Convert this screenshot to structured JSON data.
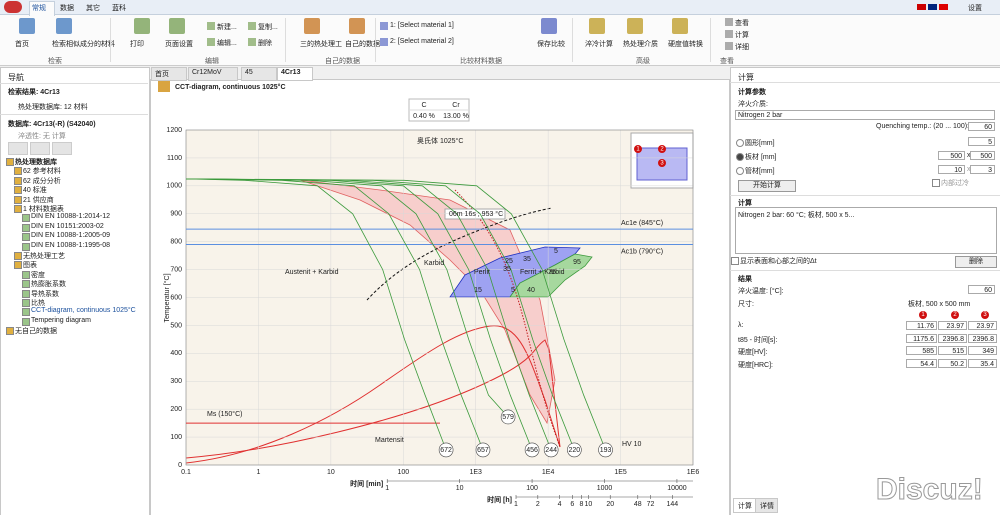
{
  "tabs": [
    "常规",
    "数据",
    "其它",
    "蓝科"
  ],
  "top_right": "设置",
  "ribbon": {
    "groups": [
      {
        "label": "检索",
        "items": [
          "首页",
          "检索相似成分的材料"
        ]
      },
      {
        "label": "编辑",
        "items": [
          "打印",
          "页面设置",
          "新建...",
          "编辑...",
          "复制...",
          "删除"
        ]
      },
      {
        "label": "自己的数据",
        "items": [
          "三的热处理工",
          "自己的数据"
        ]
      },
      {
        "label": "比较材料数据",
        "items": [
          "1: [Select material 1]",
          "2: [Select material 2]",
          "保存比较"
        ]
      },
      {
        "label": "高级",
        "items": [
          "淬冷计算",
          "热处理介质",
          "硬度值转换"
        ]
      },
      {
        "label": "查看",
        "items": [
          "查看",
          "计算",
          "详细"
        ]
      }
    ]
  },
  "nav": {
    "title": "导航",
    "search_result": "检索结果: 4Cr13",
    "db_count": "热处理数据库: 12 材料",
    "db": "数据库: 4Cr13(-R) (S42040)",
    "hardenability": "淬透性: 无 计算",
    "tree": [
      "热处理数据库",
      "62 参考材料",
      "62 成分分析",
      "40 标准",
      "21 供应商",
      "1 材料数据表",
      "DIN EN 10088-1:2014-12",
      "DIN EN 10151:2003-02",
      "DIN EN 10088-1:2005-09",
      "DIN EN 10088-1:1995-08",
      "无热处理工艺",
      "图表",
      "密度",
      "热膨胀系数",
      "导热系数",
      "比热",
      "CCT-diagram, continuous 1025°C",
      "Tempering diagram",
      "无自己的数据"
    ]
  },
  "doc_tabs": [
    "首页",
    "Cr12MoV",
    "45",
    "4Cr13"
  ],
  "diagram": {
    "title": "CCT-diagram, continuous 1025°C",
    "ylabel": "Temperatur [°C]",
    "composition": {
      "headers": [
        "C",
        "Cr"
      ],
      "values": [
        "0.40 %",
        "13.00 %"
      ]
    },
    "log_x": true,
    "grid": true,
    "xlim": [
      0.1,
      1000000
    ],
    "ylim": [
      0,
      1200
    ],
    "xticks": [
      0.1,
      1,
      10,
      100,
      {
        "value": 1000,
        "label": "1E3"
      },
      {
        "value": 10000,
        "label": "1E4"
      },
      {
        "value": 100000,
        "label": "1E5"
      },
      {
        "value": 1000000,
        "label": "1E6"
      }
    ],
    "yticks": [
      0,
      100,
      200,
      300,
      400,
      500,
      600,
      700,
      800,
      900,
      1000,
      1100,
      1200
    ],
    "min_axis": {
      "label": "时间 [min]",
      "ticks": [
        1,
        10,
        100,
        1000,
        10000
      ]
    },
    "h_axis": {
      "label": "时间 [h]",
      "ticks": [
        1,
        2,
        4,
        6,
        8,
        10,
        20,
        48,
        72,
        144
      ]
    },
    "ac1e": {
      "label": "Ac1e (845°C)",
      "value": 845,
      "color": "#5b8fe0"
    },
    "ac1b": {
      "label": "Ac1b (790°C)",
      "value": 790,
      "color": "#5b8fe0"
    },
    "ms": {
      "label": "Ms (150°C)",
      "value": 150,
      "color": "#e03030"
    },
    "curve_color": "#3c9a3c",
    "curves": [
      {
        "hardness": 672,
        "x": [
          0.1,
          0.65,
          6.5,
          20,
          52,
          104,
          200,
          390
        ],
        "y": [
          1025,
          1020,
          1000,
          900,
          700,
          450,
          250,
          54
        ]
      },
      {
        "hardness": 657,
        "x": [
          0.1,
          2.1,
          21,
          63,
          168,
          336,
          630,
          1260
        ],
        "y": [
          1025,
          1020,
          1000,
          900,
          700,
          450,
          250,
          54
        ]
      },
      {
        "hardness": 579,
        "x": [
          0.1,
          5,
          50,
          150,
          400,
          800,
          1500,
          2800
        ],
        "y": [
          1025,
          1020,
          1000,
          900,
          700,
          450,
          250,
          172
        ]
      },
      {
        "hardness": 456,
        "x": [
          0.1,
          10,
          100,
          300,
          800,
          1600,
          3000,
          6000
        ],
        "y": [
          1025,
          1020,
          1000,
          900,
          700,
          450,
          250,
          54
        ]
      },
      {
        "hardness": 244,
        "x": [
          0.1,
          18,
          183,
          550,
          1470,
          2930,
          5500,
          11000
        ],
        "y": [
          1025,
          1020,
          1000,
          900,
          700,
          450,
          250,
          54
        ]
      },
      {
        "hardness": 220,
        "x": [
          0.1,
          38,
          383,
          1150,
          3070,
          6130,
          11500,
          23000
        ],
        "y": [
          1025,
          1020,
          1000,
          900,
          700,
          450,
          250,
          54
        ]
      },
      {
        "hardness": 193,
        "x": [
          0.1,
          103,
          1033,
          3100,
          8270,
          16500,
          31000,
          62000
        ],
        "y": [
          1025,
          1020,
          1000,
          900,
          700,
          450,
          250,
          54
        ]
      }
    ],
    "hardness_unit": "HV 10",
    "annotations": [
      "奥氏体 1025°C",
      "06m 16s ; 953 °C",
      "Austenit + Karbid",
      "Karbid",
      "Perlit",
      "Ferrit + Karbid",
      "Martensit"
    ],
    "region_labels": [
      15,
      25,
      35,
      5,
      35,
      5,
      40,
      75,
      95
    ],
    "inset_markers": [
      1,
      2,
      3
    ]
  },
  "calc": {
    "title": "计算",
    "params": "计算参数",
    "medium_label": "淬火介质:",
    "medium": "Nitrogen 2 bar",
    "quench_label": "Quenching temp.: (20 ... 100):",
    "quench_temp": 60,
    "round": "圆形[mm]",
    "round_d": 5,
    "plate": "板材 [mm]",
    "plate_a": 500,
    "times": "x",
    "plate_b": 500,
    "tube": "管材[mm]",
    "tube_a": 10,
    "tube_b": 3,
    "internal": "内部过冷",
    "start": "开始计算",
    "list_title": "计算",
    "list_item": "Nitrogen 2 bar: 60 °C; 板材, 500 x 5...",
    "show_dt": "显示表面和心部之间的Δt",
    "delete": "删除",
    "results": {
      "title": "结果",
      "temp_label": "淬火温度: [°C]:",
      "temp": 60,
      "size_label": "尺寸:",
      "size": "板材, 500 x 500 mm",
      "headers": [
        1,
        2,
        3
      ],
      "rows": [
        {
          "label": "λ:",
          "values": [
            11.76,
            23.97,
            23.97
          ]
        },
        {
          "label": "t85 - 时间[s]:",
          "values": [
            1175.6,
            2396.8,
            2396.8
          ]
        },
        {
          "label": "硬度[HV]:",
          "values": [
            585,
            515,
            349
          ]
        },
        {
          "label": "硬度[HRC]:",
          "values": [
            54.4,
            50.2,
            35.4
          ]
        }
      ]
    },
    "bottom_tabs": [
      "计算",
      "详情"
    ]
  },
  "watermark": "Discuz!"
}
